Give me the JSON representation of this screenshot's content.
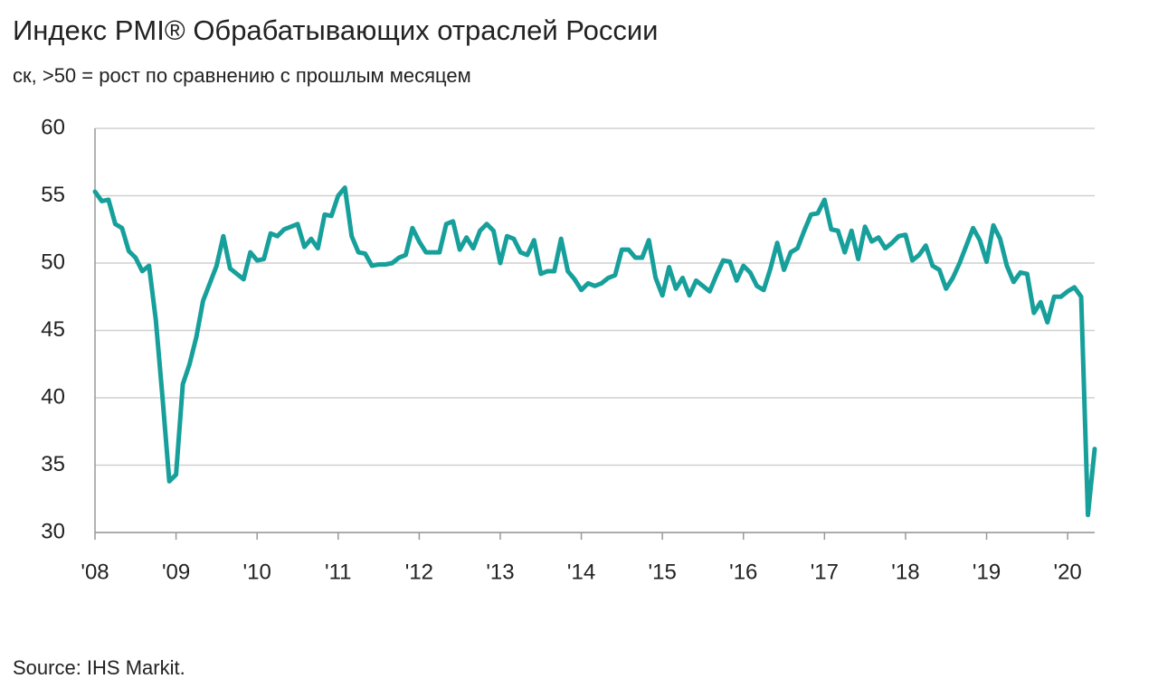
{
  "chart_data": {
    "type": "line",
    "title": "Индекс PMI® Обрабатывающих отраслей России",
    "subtitle": "ск, >50 = рост по сравнению с прошлым месяцем",
    "source": "Source: IHS Markit.",
    "categories": [
      "'08",
      null,
      null,
      null,
      null,
      null,
      null,
      null,
      null,
      null,
      null,
      null,
      "'09",
      null,
      null,
      null,
      null,
      null,
      null,
      null,
      null,
      null,
      null,
      null,
      "'10",
      null,
      null,
      null,
      null,
      null,
      null,
      null,
      null,
      null,
      null,
      null,
      "'11",
      null,
      null,
      null,
      null,
      null,
      null,
      null,
      null,
      null,
      null,
      null,
      "'12",
      null,
      null,
      null,
      null,
      null,
      null,
      null,
      null,
      null,
      null,
      null,
      "'13",
      null,
      null,
      null,
      null,
      null,
      null,
      null,
      null,
      null,
      null,
      null,
      "'14",
      null,
      null,
      null,
      null,
      null,
      null,
      null,
      null,
      null,
      null,
      null,
      "'15",
      null,
      null,
      null,
      null,
      null,
      null,
      null,
      null,
      null,
      null,
      null,
      "'16",
      null,
      null,
      null,
      null,
      null,
      null,
      null,
      null,
      null,
      null,
      null,
      "'17",
      null,
      null,
      null,
      null,
      null,
      null,
      null,
      null,
      null,
      null,
      null,
      "'18",
      null,
      null,
      null,
      null,
      null,
      null,
      null,
      null,
      null,
      null,
      null,
      "'19",
      null,
      null,
      null,
      null,
      null,
      null,
      null,
      null,
      null,
      null,
      null,
      "'20",
      null,
      null,
      null,
      null
    ],
    "series": [
      {
        "name": "PMI",
        "color": "#17a09b",
        "values": [
          55.3,
          54.6,
          54.7,
          52.9,
          52.6,
          50.9,
          50.4,
          49.4,
          49.8,
          45.8,
          40.0,
          33.8,
          34.3,
          41.0,
          42.5,
          44.5,
          47.2,
          48.5,
          49.8,
          52.0,
          49.6,
          49.2,
          48.8,
          50.8,
          50.2,
          50.3,
          52.2,
          52.0,
          52.5,
          52.7,
          52.9,
          51.2,
          51.8,
          51.1,
          53.6,
          53.5,
          55.0,
          55.6,
          52.0,
          50.8,
          50.7,
          49.8,
          49.9,
          49.9,
          50.0,
          50.4,
          50.6,
          52.6,
          51.6,
          50.8,
          50.8,
          50.8,
          52.9,
          53.1,
          51.0,
          51.9,
          51.1,
          52.4,
          52.9,
          52.4,
          50.0,
          52.0,
          51.8,
          50.8,
          50.6,
          51.7,
          49.2,
          49.4,
          49.4,
          51.8,
          49.4,
          48.8,
          48.0,
          48.5,
          48.3,
          48.5,
          48.9,
          49.1,
          51.0,
          51.0,
          50.4,
          50.4,
          51.7,
          48.9,
          47.6,
          49.7,
          48.1,
          48.9,
          47.6,
          48.7,
          48.3,
          47.9,
          49.1,
          50.2,
          50.1,
          48.7,
          49.8,
          49.3,
          48.3,
          48.0,
          49.6,
          51.5,
          49.5,
          50.8,
          51.1,
          52.4,
          53.6,
          53.7,
          54.7,
          52.5,
          52.4,
          50.8,
          52.4,
          50.3,
          52.7,
          51.6,
          51.9,
          51.1,
          51.5,
          52.0,
          52.1,
          50.2,
          50.6,
          51.3,
          49.8,
          49.5,
          48.1,
          48.9,
          50.0,
          51.3,
          52.6,
          51.7,
          50.1,
          52.8,
          51.8,
          49.8,
          48.6,
          49.3,
          49.2,
          46.3,
          47.1,
          45.6,
          47.5,
          47.5,
          47.9,
          48.2,
          47.5,
          31.3,
          36.2
        ]
      }
    ],
    "ylim": [
      30,
      60
    ],
    "yticks": [
      30,
      35,
      40,
      45,
      50,
      55,
      60
    ],
    "grid": true
  }
}
